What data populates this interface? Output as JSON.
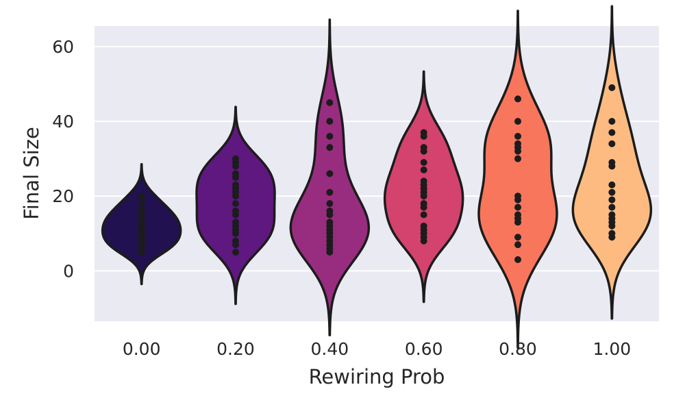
{
  "chart_data": {
    "type": "violin",
    "xlabel": "Rewiring Prob",
    "ylabel": "Final Size",
    "categories": [
      "0.00",
      "0.20",
      "0.40",
      "0.60",
      "0.80",
      "1.00"
    ],
    "yticks": [
      0,
      20,
      40,
      60
    ],
    "ylim": [
      -13.5,
      65.5
    ],
    "grid": true,
    "theme": {
      "background": "#eaeaf2",
      "grid": "#ffffff",
      "outline": "#1c1c1c",
      "text": "#262626"
    },
    "series": [
      {
        "category": "0.00",
        "color": "#221150",
        "values": [
          5,
          6,
          7,
          8,
          9,
          10,
          11,
          12,
          13,
          14,
          15,
          16,
          18,
          20
        ]
      },
      {
        "category": "0.20",
        "color": "#5f187f",
        "values": [
          5,
          7,
          8,
          10,
          11,
          12,
          13,
          15,
          16,
          18,
          20,
          21,
          22,
          23,
          25,
          26,
          28,
          29,
          30
        ]
      },
      {
        "category": "0.40",
        "color": "#982d80",
        "values": [
          5,
          6,
          7,
          8,
          9,
          10,
          11,
          12,
          13,
          15,
          16,
          18,
          21,
          26,
          33,
          36,
          40,
          45
        ]
      },
      {
        "category": "0.60",
        "color": "#d3436e",
        "values": [
          8,
          9,
          10,
          11,
          12,
          15,
          17,
          18,
          20,
          21,
          22,
          23,
          24,
          27,
          29,
          32,
          33,
          36,
          37
        ]
      },
      {
        "category": "0.80",
        "color": "#f8765c",
        "values": [
          3,
          7,
          9,
          13,
          14,
          15,
          17,
          19,
          20,
          30,
          32,
          33,
          34,
          36,
          40,
          46
        ]
      },
      {
        "category": "1.00",
        "color": "#febb81",
        "values": [
          9,
          10,
          12,
          13,
          14,
          15,
          17,
          19,
          21,
          23,
          28,
          29,
          34,
          37,
          40,
          49
        ]
      }
    ]
  }
}
